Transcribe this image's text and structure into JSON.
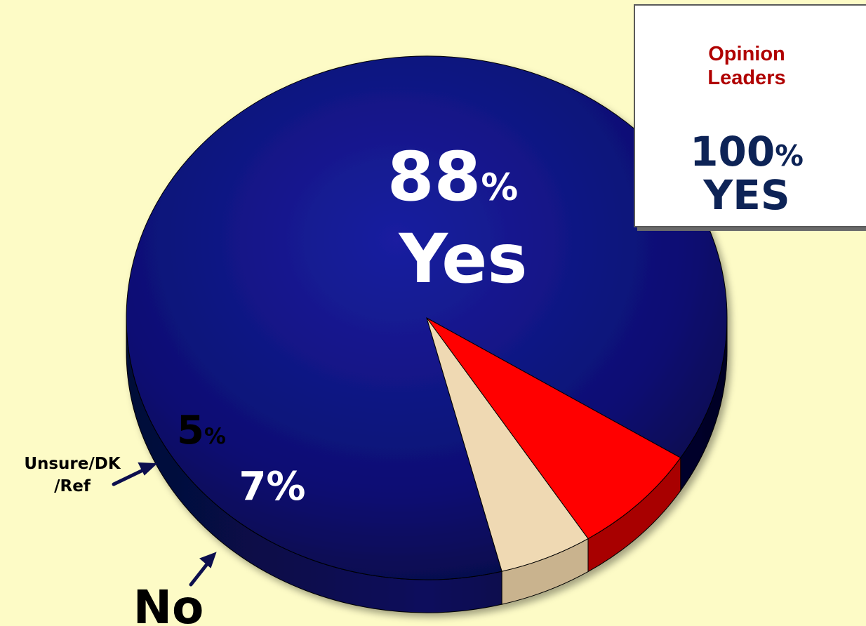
{
  "chart_data": {
    "type": "pie",
    "title": "",
    "slices": [
      {
        "label": "Yes",
        "value": 88,
        "display": "88",
        "color": "#0a0f6e"
      },
      {
        "label": "No",
        "value": 7,
        "display": "7",
        "color": "#ff0000"
      },
      {
        "label": "Unsure/DK/Ref",
        "value": 5,
        "display": "5",
        "color": "#efd9b3"
      }
    ],
    "percent_sign": "%",
    "callouts": {
      "unsure_line1": "Unsure/DK",
      "unsure_line2": "/Ref",
      "no": "No"
    }
  },
  "info_box": {
    "title_line1": "Opinion",
    "title_line2": "Leaders",
    "value": "100",
    "percent_sign": "%",
    "answer": "YES"
  }
}
